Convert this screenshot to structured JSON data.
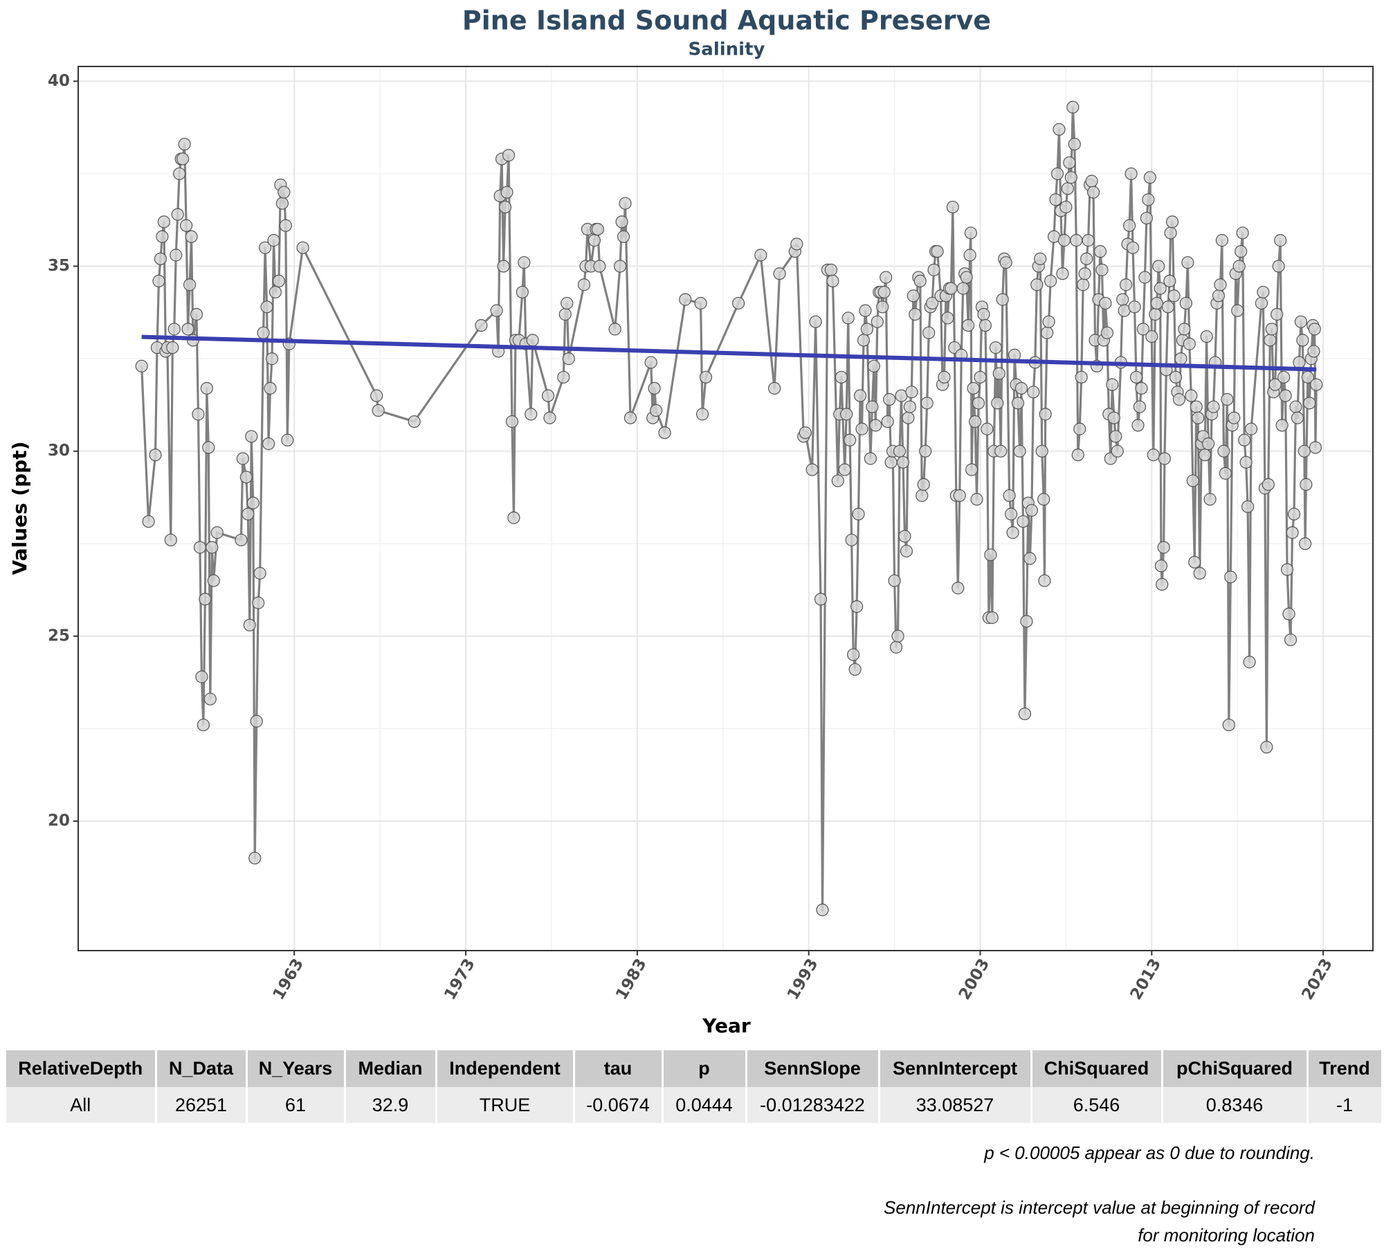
{
  "chart_data": {
    "type": "line",
    "title": "Pine Island Sound Aquatic Preserve",
    "subtitle": "Salinity",
    "x_label": "Year",
    "y_label": "Values (ppt)",
    "xlim": [
      1950.4,
      2025.9
    ],
    "xticks": [
      1963,
      1973,
      1983,
      1993,
      2003,
      2013,
      2023
    ],
    "ylim": [
      16.5,
      40.4
    ],
    "yticks": [
      20,
      25,
      30,
      35,
      40
    ],
    "grid": true,
    "color": "#808080",
    "marker_color": "#d3d3d3",
    "x": [
      1954.1,
      1954.5,
      1954.9,
      1955.0,
      1955.1,
      1955.2,
      1955.3,
      1955.4,
      1955.5,
      1955.6,
      1955.8,
      1955.9,
      1956.0,
      1956.1,
      1956.2,
      1956.3,
      1956.4,
      1956.5,
      1956.6,
      1956.7,
      1956.8,
      1956.9,
      1957.0,
      1957.1,
      1957.3,
      1957.4,
      1957.5,
      1957.6,
      1957.7,
      1957.8,
      1957.9,
      1958.0,
      1958.1,
      1958.2,
      1958.3,
      1958.5,
      1959.9,
      1960.0,
      1960.2,
      1960.3,
      1960.4,
      1960.5,
      1960.6,
      1960.7,
      1960.8,
      1960.9,
      1961.0,
      1961.2,
      1961.3,
      1961.4,
      1961.5,
      1961.6,
      1961.7,
      1961.8,
      1961.9,
      1962.1,
      1962.2,
      1962.3,
      1962.4,
      1962.5,
      1962.6,
      1962.7,
      1963.5,
      1967.8,
      1967.9,
      1970.0,
      1973.9,
      1974.8,
      1974.9,
      1975.0,
      1975.1,
      1975.2,
      1975.3,
      1975.4,
      1975.5,
      1975.7,
      1975.8,
      1975.9,
      1976.1,
      1976.3,
      1976.4,
      1976.5,
      1976.8,
      1976.9,
      1977.8,
      1977.9,
      1978.7,
      1978.8,
      1978.9,
      1979.0,
      1979.9,
      1980.0,
      1980.1,
      1980.3,
      1980.5,
      1980.6,
      1980.7,
      1980.8,
      1981.7,
      1982.0,
      1982.1,
      1982.2,
      1982.3,
      1982.6,
      1983.8,
      1983.9,
      1984.0,
      1984.1,
      1984.6,
      1985.8,
      1986.7,
      1986.8,
      1987.0,
      1988.9,
      1990.2,
      1991.0,
      1991.3,
      1992.2,
      1992.3,
      1992.7,
      1992.8,
      1993.2,
      1993.4,
      1993.7,
      1993.8,
      1994.1,
      1994.3,
      1994.4,
      1994.7,
      1994.8,
      1994.9,
      1995.1,
      1995.2,
      1995.3,
      1995.4,
      1995.5,
      1995.6,
      1995.7,
      1995.8,
      1995.9,
      1996.0,
      1996.1,
      1996.2,
      1996.3,
      1996.4,
      1996.6,
      1996.7,
      1996.8,
      1996.9,
      1997.0,
      1997.1,
      1997.2,
      1997.3,
      1997.4,
      1997.5,
      1997.6,
      1997.7,
      1997.8,
      1997.9,
      1998.0,
      1998.1,
      1998.2,
      1998.3,
      1998.4,
      1998.5,
      1998.6,
      1998.7,
      1998.8,
      1998.9,
      1999.0,
      1999.1,
      1999.2,
      1999.4,
      1999.5,
      1999.6,
      1999.7,
      1999.8,
      1999.9,
      2000.0,
      2000.1,
      2000.2,
      2000.3,
      2000.4,
      2000.5,
      2000.7,
      2000.8,
      2000.9,
      2001.0,
      2001.1,
      2001.2,
      2001.3,
      2001.4,
      2001.5,
      2001.6,
      2001.7,
      2001.8,
      2001.9,
      2002.0,
      2002.1,
      2002.2,
      2002.3,
      2002.4,
      2002.45,
      2002.5,
      2002.6,
      2002.7,
      2002.8,
      2002.9,
      2003.0,
      2003.1,
      2003.2,
      2003.3,
      2003.4,
      2003.5,
      2003.6,
      2003.7,
      2003.8,
      2003.9,
      2004.0,
      2004.1,
      2004.2,
      2004.3,
      2004.4,
      2004.5,
      2004.7,
      2004.8,
      2004.9,
      2005.0,
      2005.1,
      2005.2,
      2005.3,
      2005.4,
      2005.5,
      2005.6,
      2005.7,
      2005.8,
      2005.9,
      2006.0,
      2006.1,
      2006.2,
      2006.3,
      2006.4,
      2006.5,
      2006.6,
      2006.7,
      2006.75,
      2006.8,
      2006.9,
      2007.0,
      2007.1,
      2007.3,
      2007.4,
      2007.5,
      2007.6,
      2007.7,
      2007.8,
      2007.9,
      2008.0,
      2008.1,
      2008.2,
      2008.3,
      2008.4,
      2008.5,
      2008.6,
      2008.7,
      2008.8,
      2008.9,
      2009.0,
      2009.1,
      2009.2,
      2009.3,
      2009.4,
      2009.5,
      2009.6,
      2009.7,
      2009.8,
      2009.9,
      2010.0,
      2010.1,
      2010.2,
      2010.3,
      2010.4,
      2010.5,
      2010.6,
      2010.7,
      2010.8,
      2010.9,
      2011.0,
      2011.2,
      2011.3,
      2011.4,
      2011.5,
      2011.6,
      2011.7,
      2011.8,
      2011.9,
      2012.0,
      2012.1,
      2012.2,
      2012.3,
      2012.4,
      2012.5,
      2012.6,
      2012.7,
      2012.8,
      2012.9,
      2013.0,
      2013.1,
      2013.2,
      2013.3,
      2013.4,
      2013.5,
      2013.55,
      2013.6,
      2013.7,
      2013.75,
      2013.85,
      2013.95,
      2014.05,
      2014.1,
      2014.2,
      2014.3,
      2014.4,
      2014.5,
      2014.6,
      2014.7,
      2014.8,
      2014.9,
      2015.0,
      2015.1,
      2015.2,
      2015.3,
      2015.4,
      2015.5,
      2015.6,
      2015.7,
      2015.8,
      2015.9,
      2016.0,
      2016.1,
      2016.2,
      2016.3,
      2016.4,
      2016.5,
      2016.6,
      2016.7,
      2016.8,
      2016.9,
      2017.0,
      2017.1,
      2017.2,
      2017.3,
      2017.4,
      2017.5,
      2017.6,
      2017.7,
      2017.8,
      2017.9,
      2018.0,
      2018.1,
      2018.2,
      2018.3,
      2018.4,
      2018.5,
      2018.6,
      2018.7,
      2018.8,
      2019.4,
      2019.5,
      2019.6,
      2019.7,
      2019.8,
      2019.9,
      2020.0,
      2020.1,
      2020.2,
      2020.3,
      2020.4,
      2020.5,
      2020.6,
      2020.7,
      2020.8,
      2020.9,
      2021.0,
      2021.1,
      2021.2,
      2021.3,
      2021.4,
      2021.5,
      2021.6,
      2021.7,
      2021.8,
      2021.9,
      2021.95,
      2022.0,
      2022.1,
      2022.2,
      2022.3,
      2022.4,
      2022.45,
      2022.5,
      2022.55,
      2022.6
    ],
    "values": [
      32.3,
      28.1,
      29.9,
      32.8,
      34.6,
      35.2,
      35.8,
      36.2,
      32.7,
      32.8,
      27.6,
      32.8,
      33.3,
      35.3,
      36.4,
      37.5,
      37.9,
      37.9,
      38.3,
      36.1,
      33.3,
      34.5,
      35.8,
      33.0,
      33.7,
      31.0,
      27.4,
      23.9,
      22.6,
      26.0,
      31.7,
      30.1,
      23.3,
      27.4,
      26.5,
      27.8,
      27.6,
      29.8,
      29.3,
      28.3,
      25.3,
      30.4,
      28.6,
      19.0,
      22.7,
      25.9,
      26.7,
      33.2,
      35.5,
      33.9,
      30.2,
      31.7,
      32.5,
      35.7,
      34.3,
      34.6,
      37.2,
      36.7,
      37.0,
      36.1,
      30.3,
      32.9,
      35.5,
      31.5,
      31.1,
      30.8,
      33.4,
      33.8,
      32.7,
      36.9,
      37.9,
      35.0,
      36.6,
      37.0,
      38.0,
      30.8,
      28.2,
      33.0,
      33.0,
      34.3,
      35.1,
      32.9,
      31.0,
      33.0,
      31.5,
      30.9,
      32.0,
      33.7,
      34.0,
      32.5,
      34.5,
      35.0,
      36.0,
      35.0,
      35.7,
      36.0,
      36.0,
      35.0,
      33.3,
      35.0,
      36.2,
      35.8,
      36.7,
      30.9,
      32.4,
      30.9,
      31.7,
      31.1,
      30.5,
      34.1,
      34.0,
      31.0,
      32.0,
      34.0,
      35.3,
      31.7,
      34.8,
      35.4,
      35.6,
      30.4,
      30.5,
      29.5,
      33.5,
      26.0,
      17.6,
      34.9,
      34.9,
      34.6,
      29.2,
      31.0,
      32.0,
      29.5,
      31.0,
      33.6,
      30.3,
      27.6,
      24.5,
      24.1,
      25.8,
      28.3,
      31.5,
      30.6,
      33.0,
      33.8,
      33.3,
      29.8,
      31.2,
      32.3,
      30.7,
      33.5,
      34.3,
      34.3,
      33.9,
      34.3,
      34.7,
      30.8,
      31.4,
      29.7,
      30.0,
      26.5,
      24.7,
      25.0,
      30.0,
      31.5,
      29.7,
      27.7,
      27.3,
      30.9,
      31.2,
      31.6,
      34.2,
      33.7,
      34.7,
      34.6,
      28.8,
      29.1,
      30.0,
      31.3,
      33.2,
      33.9,
      34.0,
      34.9,
      35.4,
      35.4,
      34.2,
      31.8,
      32.0,
      34.2,
      33.6,
      34.4,
      34.4,
      36.6,
      32.8,
      28.8,
      26.3,
      28.8,
      32.6,
      34.4,
      34.8,
      34.7,
      33.4,
      35.3,
      35.9,
      29.5,
      31.7,
      30.8,
      28.7,
      31.3,
      32.0,
      33.9,
      33.7,
      33.4,
      30.6,
      25.5,
      27.2,
      25.5,
      30.0,
      32.8,
      31.3,
      32.1,
      30.0,
      34.1,
      35.2,
      35.1,
      28.8,
      28.3,
      27.8,
      32.6,
      31.8,
      31.3,
      30.0,
      31.7,
      28.1,
      22.9,
      25.4,
      28.6,
      27.1,
      28.4,
      31.6,
      32.4,
      34.5,
      35.0,
      35.2,
      30.0,
      28.7,
      26.5,
      31.0,
      33.2,
      33.5,
      34.6,
      35.8,
      36.8,
      37.5,
      38.7,
      36.5,
      34.8,
      35.7,
      36.6,
      37.1,
      37.8,
      37.4,
      39.3,
      38.3,
      35.7,
      29.9,
      30.6,
      32.0,
      34.5,
      34.8,
      35.2,
      35.7,
      37.2,
      37.3,
      37.0,
      33.0,
      32.3,
      34.1,
      35.4,
      34.9,
      33.0,
      34.0,
      33.2,
      31.0,
      29.8,
      31.8,
      30.9,
      30.4,
      30.0,
      32.4,
      34.1,
      33.8,
      34.5,
      35.6,
      36.1,
      37.5,
      35.5,
      33.9,
      32.0,
      30.7,
      31.2,
      31.7,
      33.3,
      34.7,
      36.3,
      36.8,
      37.4,
      33.1,
      29.9,
      33.7,
      34.0,
      35.0,
      34.4,
      26.9,
      26.4,
      27.4,
      29.8,
      32.2,
      33.9,
      34.6,
      35.9,
      36.2,
      34.2,
      32.0,
      31.6,
      31.4,
      32.5,
      33.0,
      33.3,
      34.0,
      35.1,
      32.9,
      31.5,
      29.2,
      27.0,
      31.2,
      30.9,
      26.7,
      30.2,
      30.4,
      29.9,
      33.1,
      30.2,
      28.7,
      31.0,
      31.2,
      32.4,
      34.0,
      34.2,
      34.5,
      35.7,
      30.0,
      29.4,
      31.4,
      22.6,
      26.6,
      30.7,
      30.9,
      34.8,
      33.8,
      35.0,
      35.4,
      35.9,
      30.3,
      29.7,
      28.5,
      24.3,
      30.6,
      34.0,
      34.3,
      29.0,
      22.0,
      29.1,
      33.0,
      33.3,
      31.6,
      31.8,
      33.7,
      35.0,
      35.7,
      30.7,
      32.0,
      31.5,
      26.8,
      25.6,
      24.9,
      27.8,
      28.3,
      31.2,
      30.9,
      32.4,
      33.5,
      33.0,
      30.0,
      27.5,
      29.1,
      32.0,
      31.3,
      32.5,
      33.4,
      32.7,
      33.3,
      30.1,
      31.8
    ],
    "trend": {
      "color": "#3a3fb0",
      "x": [
        1954.1,
        2022.6
      ],
      "values": [
        33.09,
        32.21
      ]
    }
  },
  "table": {
    "columns": [
      "RelativeDepth",
      "N_Data",
      "N_Years",
      "Median",
      "Independent",
      "tau",
      "p",
      "SennSlope",
      "SennIntercept",
      "ChiSquared",
      "pChiSquared",
      "Trend"
    ],
    "rows": [
      [
        "All",
        26251,
        61,
        32.9,
        "TRUE",
        -0.0674,
        0.0444,
        -0.01283422,
        33.08527,
        6.546,
        0.8346,
        -1
      ]
    ]
  },
  "notes": [
    "p < 0.00005 appear as 0 due to rounding.",
    "SennIntercept is intercept value at beginning of record for monitoring location"
  ]
}
